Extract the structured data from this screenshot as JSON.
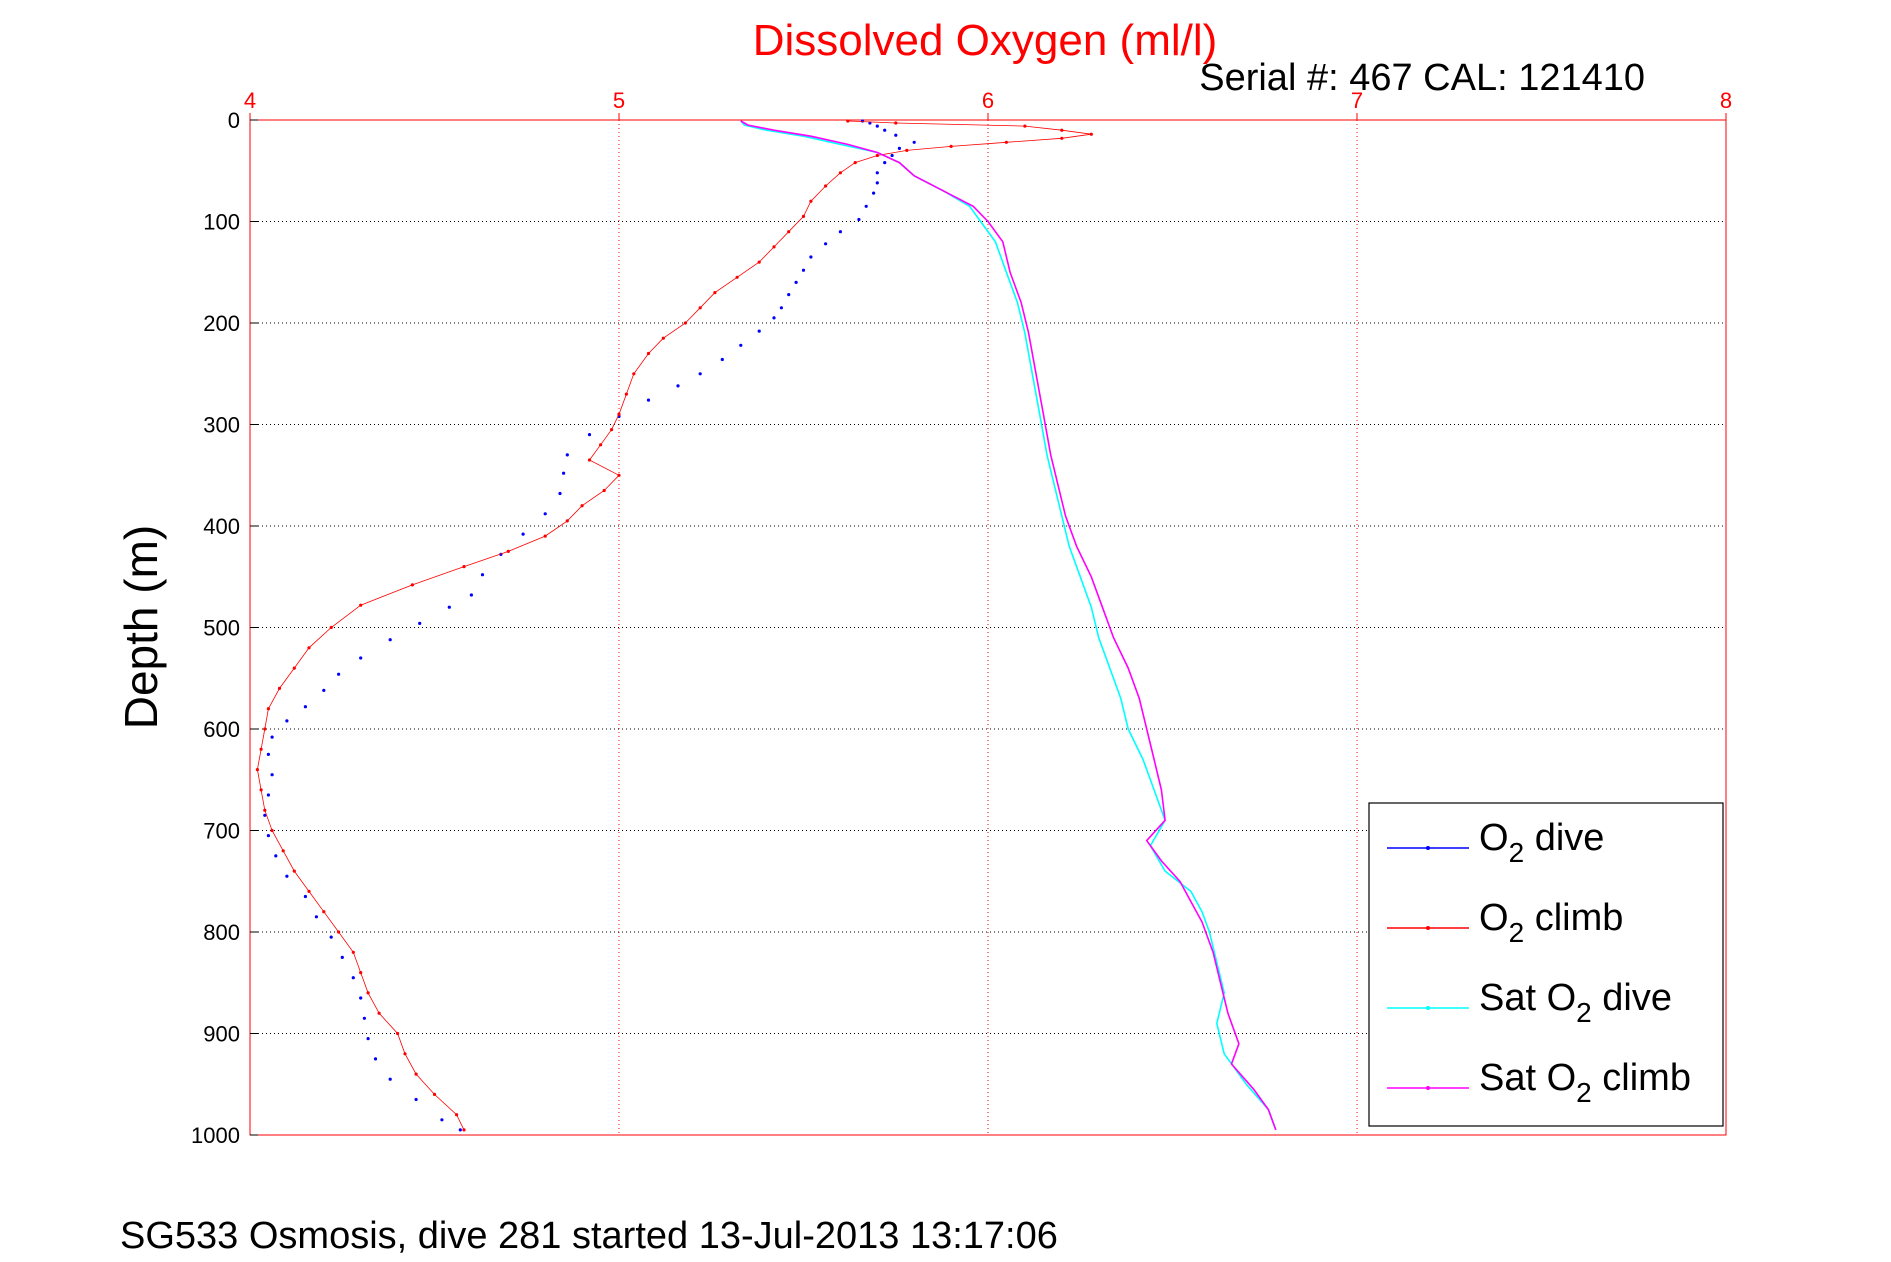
{
  "chart_data": {
    "type": "line",
    "title": "Dissolved Oxygen (ml/l)",
    "subtitle": "Serial #: 467  CAL: 121410",
    "xlabel": "",
    "ylabel": "Depth (m)",
    "xlim": [
      4,
      8
    ],
    "ylim": [
      1000,
      0
    ],
    "x_ticks": [
      "4",
      "5",
      "6",
      "7",
      "8"
    ],
    "y_ticks": [
      "0",
      "100",
      "200",
      "300",
      "400",
      "500",
      "600",
      "700",
      "800",
      "900",
      "1000"
    ],
    "x_ticks_values": [
      4,
      5,
      6,
      7,
      8
    ],
    "y_ticks_values": [
      0,
      100,
      200,
      300,
      400,
      500,
      600,
      700,
      800,
      900,
      1000
    ],
    "grid": true,
    "legend_position": "lower-right",
    "footer": "SG533 Osmosis, dive 281 started 13-Jul-2013 13:17:06",
    "series": [
      {
        "name": "O2 dive",
        "label_main": "O",
        "label_sub": "2",
        "label_rest": " dive",
        "color": "#0000ff",
        "style": "dots",
        "points": [
          [
            5.66,
            1
          ],
          [
            5.68,
            3
          ],
          [
            5.7,
            6
          ],
          [
            5.72,
            10
          ],
          [
            5.75,
            15
          ],
          [
            5.8,
            22
          ],
          [
            5.76,
            28
          ],
          [
            5.74,
            35
          ],
          [
            5.72,
            42
          ],
          [
            5.7,
            52
          ],
          [
            5.7,
            62
          ],
          [
            5.69,
            72
          ],
          [
            5.67,
            85
          ],
          [
            5.65,
            98
          ],
          [
            5.6,
            110
          ],
          [
            5.56,
            122
          ],
          [
            5.52,
            135
          ],
          [
            5.5,
            148
          ],
          [
            5.48,
            160
          ],
          [
            5.46,
            172
          ],
          [
            5.44,
            185
          ],
          [
            5.42,
            195
          ],
          [
            5.38,
            208
          ],
          [
            5.33,
            222
          ],
          [
            5.28,
            236
          ],
          [
            5.22,
            250
          ],
          [
            5.16,
            262
          ],
          [
            5.08,
            276
          ],
          [
            5.0,
            292
          ],
          [
            4.92,
            310
          ],
          [
            4.86,
            330
          ],
          [
            4.85,
            348
          ],
          [
            4.84,
            368
          ],
          [
            4.8,
            388
          ],
          [
            4.74,
            408
          ],
          [
            4.68,
            428
          ],
          [
            4.63,
            448
          ],
          [
            4.6,
            468
          ],
          [
            4.54,
            480
          ],
          [
            4.46,
            496
          ],
          [
            4.38,
            512
          ],
          [
            4.3,
            530
          ],
          [
            4.24,
            546
          ],
          [
            4.2,
            562
          ],
          [
            4.15,
            578
          ],
          [
            4.1,
            592
          ],
          [
            4.06,
            608
          ],
          [
            4.05,
            625
          ],
          [
            4.06,
            645
          ],
          [
            4.05,
            665
          ],
          [
            4.04,
            685
          ],
          [
            4.05,
            705
          ],
          [
            4.07,
            725
          ],
          [
            4.1,
            745
          ],
          [
            4.15,
            765
          ],
          [
            4.18,
            785
          ],
          [
            4.22,
            805
          ],
          [
            4.25,
            825
          ],
          [
            4.28,
            845
          ],
          [
            4.3,
            865
          ],
          [
            4.31,
            885
          ],
          [
            4.32,
            905
          ],
          [
            4.34,
            925
          ],
          [
            4.38,
            945
          ],
          [
            4.45,
            965
          ],
          [
            4.52,
            985
          ],
          [
            4.57,
            995
          ]
        ]
      },
      {
        "name": "O2 climb",
        "label_main": "O",
        "label_sub": "2",
        "label_rest": " climb",
        "color": "#ff0000",
        "style": "dots-line",
        "points": [
          [
            5.62,
            1
          ],
          [
            5.75,
            3
          ],
          [
            6.1,
            6
          ],
          [
            6.2,
            10
          ],
          [
            6.28,
            14
          ],
          [
            6.2,
            18
          ],
          [
            6.05,
            22
          ],
          [
            5.9,
            26
          ],
          [
            5.78,
            30
          ],
          [
            5.7,
            35
          ],
          [
            5.64,
            42
          ],
          [
            5.6,
            52
          ],
          [
            5.56,
            65
          ],
          [
            5.52,
            80
          ],
          [
            5.5,
            95
          ],
          [
            5.46,
            110
          ],
          [
            5.42,
            125
          ],
          [
            5.38,
            140
          ],
          [
            5.32,
            155
          ],
          [
            5.26,
            170
          ],
          [
            5.22,
            185
          ],
          [
            5.18,
            200
          ],
          [
            5.12,
            215
          ],
          [
            5.08,
            230
          ],
          [
            5.04,
            250
          ],
          [
            5.02,
            270
          ],
          [
            5.0,
            290
          ],
          [
            4.98,
            305
          ],
          [
            4.95,
            320
          ],
          [
            4.92,
            335
          ],
          [
            5.0,
            350
          ],
          [
            4.96,
            365
          ],
          [
            4.9,
            380
          ],
          [
            4.86,
            395
          ],
          [
            4.8,
            410
          ],
          [
            4.7,
            425
          ],
          [
            4.58,
            440
          ],
          [
            4.44,
            458
          ],
          [
            4.3,
            478
          ],
          [
            4.22,
            500
          ],
          [
            4.16,
            520
          ],
          [
            4.12,
            540
          ],
          [
            4.08,
            560
          ],
          [
            4.05,
            580
          ],
          [
            4.04,
            600
          ],
          [
            4.03,
            620
          ],
          [
            4.02,
            640
          ],
          [
            4.03,
            660
          ],
          [
            4.04,
            680
          ],
          [
            4.06,
            700
          ],
          [
            4.09,
            720
          ],
          [
            4.12,
            740
          ],
          [
            4.16,
            760
          ],
          [
            4.2,
            780
          ],
          [
            4.24,
            800
          ],
          [
            4.28,
            820
          ],
          [
            4.3,
            840
          ],
          [
            4.32,
            860
          ],
          [
            4.35,
            880
          ],
          [
            4.4,
            900
          ],
          [
            4.42,
            920
          ],
          [
            4.45,
            940
          ],
          [
            4.5,
            960
          ],
          [
            4.56,
            980
          ],
          [
            4.58,
            995
          ]
        ]
      },
      {
        "name": "Sat O2 dive",
        "label_main": "Sat O",
        "label_sub": "2",
        "label_rest": " dive",
        "color": "#00ffff",
        "style": "line",
        "points": [
          [
            5.33,
            1
          ],
          [
            5.34,
            5
          ],
          [
            5.4,
            10
          ],
          [
            5.5,
            16
          ],
          [
            5.6,
            24
          ],
          [
            5.7,
            32
          ],
          [
            5.76,
            42
          ],
          [
            5.8,
            55
          ],
          [
            5.88,
            70
          ],
          [
            5.95,
            85
          ],
          [
            5.98,
            100
          ],
          [
            6.02,
            120
          ],
          [
            6.05,
            150
          ],
          [
            6.08,
            180
          ],
          [
            6.1,
            210
          ],
          [
            6.12,
            250
          ],
          [
            6.14,
            290
          ],
          [
            6.16,
            330
          ],
          [
            6.18,
            360
          ],
          [
            6.2,
            390
          ],
          [
            6.22,
            420
          ],
          [
            6.25,
            450
          ],
          [
            6.28,
            480
          ],
          [
            6.3,
            510
          ],
          [
            6.33,
            540
          ],
          [
            6.36,
            570
          ],
          [
            6.38,
            600
          ],
          [
            6.42,
            630
          ],
          [
            6.45,
            660
          ],
          [
            6.48,
            690
          ],
          [
            6.44,
            715
          ],
          [
            6.48,
            740
          ],
          [
            6.55,
            760
          ],
          [
            6.58,
            780
          ],
          [
            6.6,
            800
          ],
          [
            6.62,
            830
          ],
          [
            6.64,
            860
          ],
          [
            6.62,
            890
          ],
          [
            6.64,
            920
          ],
          [
            6.7,
            950
          ],
          [
            6.76,
            975
          ],
          [
            6.78,
            995
          ]
        ]
      },
      {
        "name": "Sat O2 climb",
        "label_main": "Sat O",
        "label_sub": "2",
        "label_rest": " climb",
        "color": "#ff00ff",
        "style": "line",
        "points": [
          [
            5.33,
            1
          ],
          [
            5.35,
            5
          ],
          [
            5.42,
            10
          ],
          [
            5.52,
            16
          ],
          [
            5.62,
            24
          ],
          [
            5.7,
            32
          ],
          [
            5.76,
            42
          ],
          [
            5.8,
            55
          ],
          [
            5.88,
            70
          ],
          [
            5.96,
            85
          ],
          [
            6.0,
            100
          ],
          [
            6.04,
            120
          ],
          [
            6.06,
            150
          ],
          [
            6.09,
            180
          ],
          [
            6.11,
            210
          ],
          [
            6.13,
            250
          ],
          [
            6.15,
            290
          ],
          [
            6.17,
            330
          ],
          [
            6.19,
            360
          ],
          [
            6.21,
            390
          ],
          [
            6.24,
            420
          ],
          [
            6.28,
            450
          ],
          [
            6.31,
            480
          ],
          [
            6.34,
            510
          ],
          [
            6.38,
            540
          ],
          [
            6.41,
            570
          ],
          [
            6.43,
            600
          ],
          [
            6.45,
            630
          ],
          [
            6.47,
            660
          ],
          [
            6.48,
            690
          ],
          [
            6.43,
            710
          ],
          [
            6.47,
            730
          ],
          [
            6.52,
            750
          ],
          [
            6.55,
            770
          ],
          [
            6.58,
            790
          ],
          [
            6.61,
            820
          ],
          [
            6.63,
            850
          ],
          [
            6.65,
            880
          ],
          [
            6.68,
            910
          ],
          [
            6.66,
            930
          ],
          [
            6.72,
            955
          ],
          [
            6.76,
            975
          ],
          [
            6.78,
            995
          ]
        ]
      }
    ]
  }
}
